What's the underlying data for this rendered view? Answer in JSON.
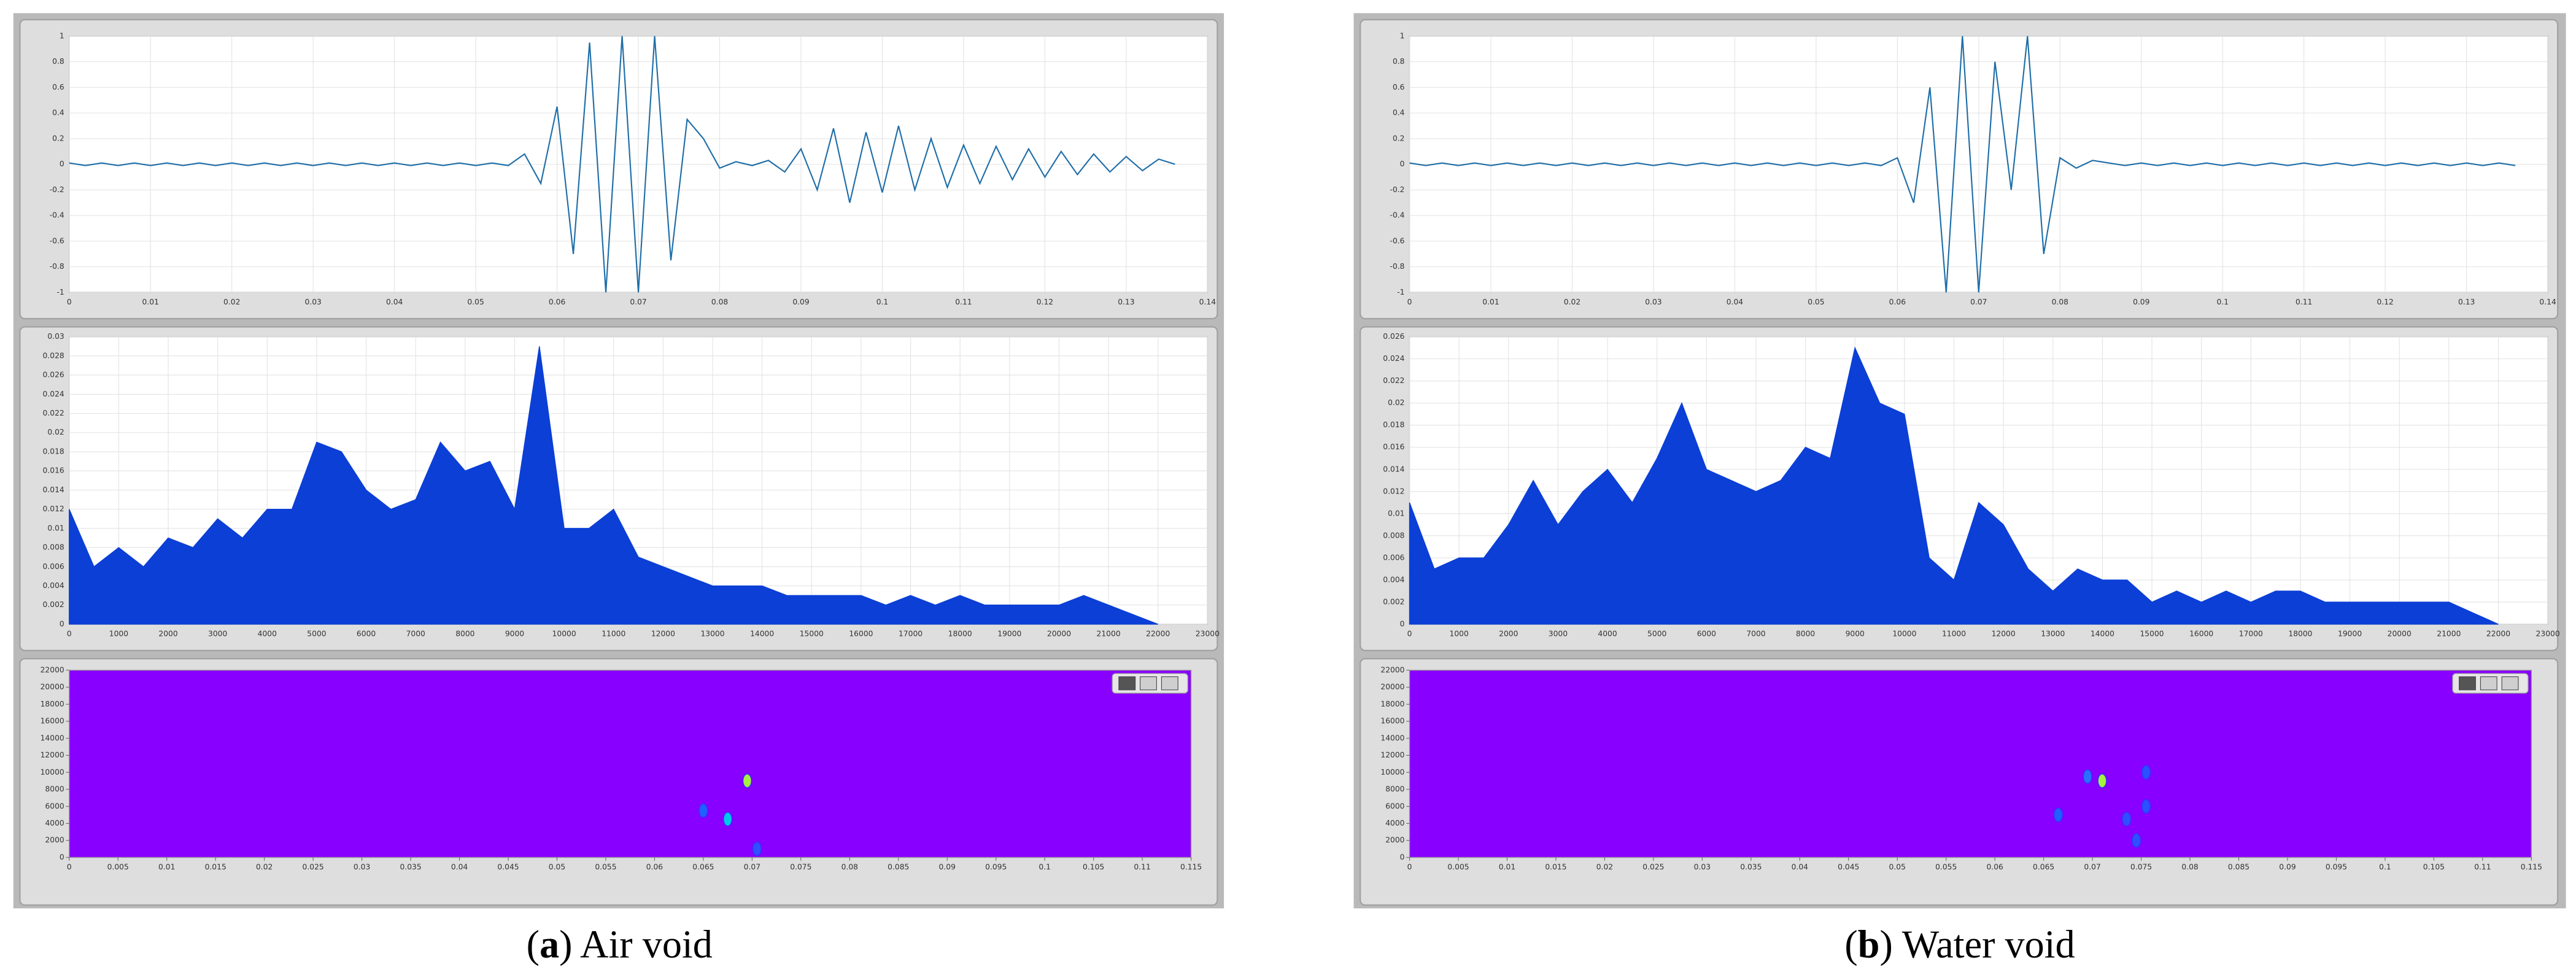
{
  "chart_data": [
    {
      "type": "line",
      "color": "#1f6ea8",
      "grid": true,
      "x": [
        0,
        0.002,
        0.004,
        0.006,
        0.008,
        0.01,
        0.012,
        0.014,
        0.016,
        0.018,
        0.02,
        0.022,
        0.024,
        0.026,
        0.028,
        0.03,
        0.032,
        0.034,
        0.036,
        0.038,
        0.04,
        0.042,
        0.044,
        0.046,
        0.048,
        0.05,
        0.052,
        0.054,
        0.056,
        0.058,
        0.06,
        0.062,
        0.064,
        0.066,
        0.068,
        0.07,
        0.072,
        0.074,
        0.076,
        0.078,
        0.08,
        0.082,
        0.084,
        0.086,
        0.088,
        0.09,
        0.092,
        0.094,
        0.096,
        0.098,
        0.1,
        0.102,
        0.104,
        0.106,
        0.108,
        0.11,
        0.112,
        0.114,
        0.116,
        0.118,
        0.12,
        0.122,
        0.124,
        0.126,
        0.128,
        0.13,
        0.132,
        0.134,
        0.136
      ],
      "values": [
        0.01,
        -0.01,
        0.01,
        -0.01,
        0.01,
        -0.01,
        0.01,
        -0.01,
        0.01,
        -0.01,
        0.01,
        -0.01,
        0.01,
        -0.01,
        0.01,
        -0.01,
        0.01,
        -0.01,
        0.01,
        -0.01,
        0.01,
        -0.01,
        0.01,
        -0.01,
        0.01,
        -0.01,
        0.01,
        -0.01,
        0.08,
        -0.15,
        0.45,
        -0.7,
        0.95,
        -1,
        1,
        -1,
        1,
        -0.75,
        0.35,
        0.2,
        -0.03,
        0.02,
        -0.01,
        0.03,
        -0.06,
        0.12,
        -0.2,
        0.28,
        -0.3,
        0.25,
        -0.22,
        0.3,
        -0.2,
        0.2,
        -0.18,
        0.15,
        -0.15,
        0.14,
        -0.12,
        0.12,
        -0.1,
        0.1,
        -0.08,
        0.08,
        -0.06,
        0.06,
        -0.05,
        0.04,
        0
      ],
      "xlim": [
        0,
        0.14
      ],
      "ylim": [
        -1,
        1
      ],
      "xticks": [
        0,
        0.01,
        0.02,
        0.03,
        0.04,
        0.05,
        0.06,
        0.07,
        0.08,
        0.09,
        0.1,
        0.11,
        0.12,
        0.13,
        0.14
      ],
      "yticks": [
        -1,
        -0.8,
        -0.6,
        -0.4,
        -0.2,
        0,
        0.2,
        0.4,
        0.6,
        0.8,
        1
      ]
    },
    {
      "type": "area",
      "color": "#0b3fd6",
      "grid": true,
      "x": [
        0,
        500,
        1000,
        1500,
        2000,
        2500,
        3000,
        3500,
        4000,
        4500,
        5000,
        5500,
        6000,
        6500,
        7000,
        7500,
        8000,
        8500,
        9000,
        9500,
        10000,
        10500,
        11000,
        11500,
        12000,
        12500,
        13000,
        13500,
        14000,
        14500,
        15000,
        15500,
        16000,
        16500,
        17000,
        17500,
        18000,
        18500,
        19000,
        19500,
        20000,
        20500,
        21000,
        21500,
        22000
      ],
      "values": [
        0.012,
        0.006,
        0.008,
        0.006,
        0.009,
        0.008,
        0.011,
        0.009,
        0.012,
        0.012,
        0.019,
        0.018,
        0.014,
        0.012,
        0.013,
        0.019,
        0.016,
        0.017,
        0.012,
        0.029,
        0.01,
        0.01,
        0.012,
        0.007,
        0.006,
        0.005,
        0.004,
        0.004,
        0.004,
        0.003,
        0.003,
        0.003,
        0.003,
        0.002,
        0.003,
        0.002,
        0.003,
        0.002,
        0.002,
        0.002,
        0.002,
        0.003,
        0.002,
        0.001,
        0
      ],
      "xlim": [
        0,
        23000
      ],
      "ylim": [
        0,
        0.03
      ],
      "xticks": [
        0,
        1000,
        2000,
        3000,
        4000,
        5000,
        6000,
        7000,
        8000,
        9000,
        10000,
        11000,
        12000,
        13000,
        14000,
        15000,
        16000,
        17000,
        18000,
        19000,
        20000,
        21000,
        22000,
        23000
      ],
      "yticks": [
        0,
        0.002,
        0.004,
        0.006,
        0.008,
        0.01,
        0.012,
        0.014,
        0.016,
        0.018,
        0.02,
        0.022,
        0.024,
        0.026,
        0.028,
        0.03
      ]
    },
    {
      "type": "scatter",
      "background": "#8800ff",
      "grid": false,
      "x": [
        0.065,
        0.0675,
        0.0695,
        0.0705
      ],
      "values": [
        5500,
        4500,
        9000,
        1000
      ],
      "colors": [
        "#2060ff",
        "#00c8e8",
        "#a8f040",
        "#3050ff"
      ],
      "xlim": [
        0,
        0.115
      ],
      "ylim": [
        0,
        22000
      ],
      "xticks": [
        0,
        0.005,
        0.01,
        0.015,
        0.02,
        0.025,
        0.03,
        0.035,
        0.04,
        0.045,
        0.05,
        0.055,
        0.06,
        0.065,
        0.07,
        0.075,
        0.08,
        0.085,
        0.09,
        0.095,
        0.1,
        0.105,
        0.11,
        0.115
      ],
      "yticks": [
        0,
        2000,
        4000,
        6000,
        8000,
        10000,
        12000,
        14000,
        16000,
        18000,
        20000,
        22000
      ]
    },
    {
      "type": "line",
      "color": "#1f6ea8",
      "grid": true,
      "x": [
        0,
        0.002,
        0.004,
        0.006,
        0.008,
        0.01,
        0.012,
        0.014,
        0.016,
        0.018,
        0.02,
        0.022,
        0.024,
        0.026,
        0.028,
        0.03,
        0.032,
        0.034,
        0.036,
        0.038,
        0.04,
        0.042,
        0.044,
        0.046,
        0.048,
        0.05,
        0.052,
        0.054,
        0.056,
        0.058,
        0.06,
        0.062,
        0.064,
        0.066,
        0.068,
        0.07,
        0.072,
        0.074,
        0.076,
        0.078,
        0.08,
        0.082,
        0.084,
        0.086,
        0.088,
        0.09,
        0.092,
        0.094,
        0.096,
        0.098,
        0.1,
        0.102,
        0.104,
        0.106,
        0.108,
        0.11,
        0.112,
        0.114,
        0.116,
        0.118,
        0.12,
        0.122,
        0.124,
        0.126,
        0.128,
        0.13,
        0.132,
        0.134,
        0.136
      ],
      "values": [
        0.01,
        -0.01,
        0.01,
        -0.01,
        0.01,
        -0.01,
        0.01,
        -0.01,
        0.01,
        -0.01,
        0.01,
        -0.01,
        0.01,
        -0.01,
        0.01,
        -0.01,
        0.01,
        -0.01,
        0.01,
        -0.01,
        0.01,
        -0.01,
        0.01,
        -0.01,
        0.01,
        -0.01,
        0.01,
        -0.01,
        0.01,
        -0.01,
        0.05,
        -0.3,
        0.6,
        -1,
        1,
        -1,
        0.8,
        -0.2,
        1,
        -0.7,
        0.05,
        -0.03,
        0.03,
        0.01,
        -0.01,
        0.01,
        -0.01,
        0.01,
        -0.01,
        0.01,
        -0.01,
        0.01,
        -0.01,
        0.01,
        -0.01,
        0.01,
        -0.01,
        0.01,
        -0.01,
        0.01,
        -0.01,
        0.01,
        -0.01,
        0.01,
        -0.01,
        0.01,
        -0.01,
        0.01,
        -0.01
      ],
      "xlim": [
        0,
        0.14
      ],
      "ylim": [
        -1,
        1
      ],
      "xticks": [
        0,
        0.01,
        0.02,
        0.03,
        0.04,
        0.05,
        0.06,
        0.07,
        0.08,
        0.09,
        0.1,
        0.11,
        0.12,
        0.13,
        0.14
      ],
      "yticks": [
        -1,
        -0.8,
        -0.6,
        -0.4,
        -0.2,
        0,
        0.2,
        0.4,
        0.6,
        0.8,
        1
      ]
    },
    {
      "type": "area",
      "color": "#0b3fd6",
      "grid": true,
      "x": [
        0,
        500,
        1000,
        1500,
        2000,
        2500,
        3000,
        3500,
        4000,
        4500,
        5000,
        5500,
        6000,
        6500,
        7000,
        7500,
        8000,
        8500,
        9000,
        9500,
        10000,
        10500,
        11000,
        11500,
        12000,
        12500,
        13000,
        13500,
        14000,
        14500,
        15000,
        15500,
        16000,
        16500,
        17000,
        17500,
        18000,
        18500,
        19000,
        19500,
        20000,
        20500,
        21000,
        21500,
        22000
      ],
      "values": [
        0.011,
        0.005,
        0.006,
        0.006,
        0.009,
        0.013,
        0.009,
        0.012,
        0.014,
        0.011,
        0.015,
        0.02,
        0.014,
        0.013,
        0.012,
        0.013,
        0.016,
        0.015,
        0.025,
        0.02,
        0.019,
        0.006,
        0.004,
        0.011,
        0.009,
        0.005,
        0.003,
        0.005,
        0.004,
        0.004,
        0.002,
        0.003,
        0.002,
        0.003,
        0.002,
        0.003,
        0.003,
        0.002,
        0.002,
        0.002,
        0.002,
        0.002,
        0.002,
        0.001,
        0
      ],
      "xlim": [
        0,
        23000
      ],
      "ylim": [
        0,
        0.026
      ],
      "xticks": [
        0,
        1000,
        2000,
        3000,
        4000,
        5000,
        6000,
        7000,
        8000,
        9000,
        10000,
        11000,
        12000,
        13000,
        14000,
        15000,
        16000,
        17000,
        18000,
        19000,
        20000,
        21000,
        22000,
        23000
      ],
      "yticks": [
        0,
        0.002,
        0.004,
        0.006,
        0.008,
        0.01,
        0.012,
        0.014,
        0.016,
        0.018,
        0.02,
        0.022,
        0.024,
        0.026
      ]
    },
    {
      "type": "scatter",
      "background": "#8800ff",
      "grid": false,
      "x": [
        0.0665,
        0.0695,
        0.071,
        0.0735,
        0.0755,
        0.0755,
        0.0745
      ],
      "values": [
        5000,
        9500,
        9000,
        4500,
        10000,
        6000,
        2000
      ],
      "colors": [
        "#2060ff",
        "#2a70ff",
        "#a8f040",
        "#3050ff",
        "#2a50ff",
        "#2a50ff",
        "#3050ff"
      ],
      "xlim": [
        0,
        0.115
      ],
      "ylim": [
        0,
        22000
      ],
      "xticks": [
        0,
        0.005,
        0.01,
        0.015,
        0.02,
        0.025,
        0.03,
        0.035,
        0.04,
        0.045,
        0.05,
        0.055,
        0.06,
        0.065,
        0.07,
        0.075,
        0.08,
        0.085,
        0.09,
        0.095,
        0.1,
        0.105,
        0.11,
        0.115
      ],
      "yticks": [
        0,
        2000,
        4000,
        6000,
        8000,
        10000,
        12000,
        14000,
        16000,
        18000,
        20000,
        22000
      ]
    }
  ],
  "captions": [
    [
      "(",
      "a",
      ") Air void"
    ],
    [
      "(",
      "b",
      ") Water void"
    ]
  ]
}
